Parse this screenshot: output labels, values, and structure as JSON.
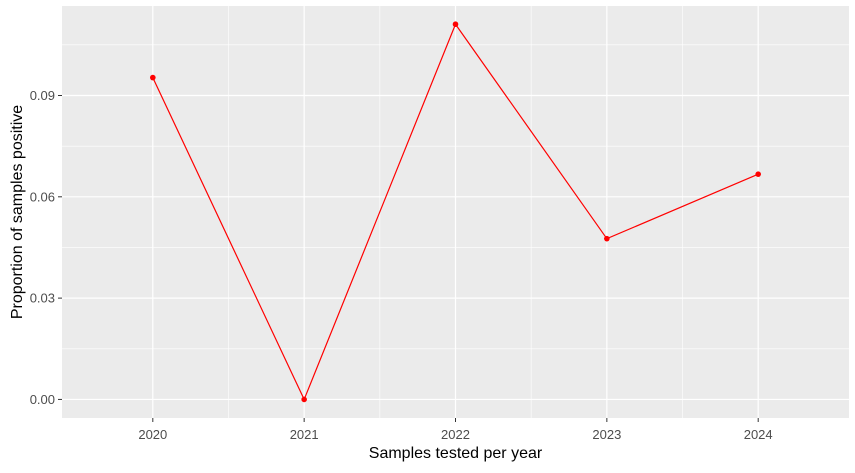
{
  "chart_data": {
    "type": "line",
    "title": "",
    "xlabel": "Samples tested per year",
    "ylabel": "Proportion of samples positive",
    "x": [
      "2020",
      "2021",
      "2022",
      "2023",
      "2024"
    ],
    "series": [
      {
        "values": [
          0.0953,
          0.0,
          0.1111,
          0.0476,
          0.0667
        ],
        "color": "#ff0000"
      }
    ],
    "y_ticks": [
      0.0,
      0.03,
      0.06,
      0.09
    ],
    "y_tick_labels": [
      "0.00",
      "0.03",
      "0.06",
      "0.09"
    ],
    "ylim": [
      -0.0055,
      0.1165
    ],
    "grid": true,
    "panel_background": "#ebebeb",
    "grid_color": "#ffffff",
    "legend": "none"
  }
}
